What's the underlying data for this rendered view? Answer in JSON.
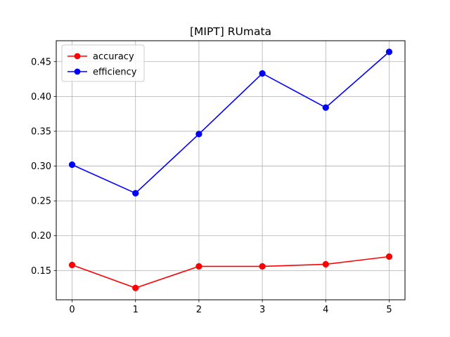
{
  "chart_data": {
    "type": "line",
    "title": "[MIPT] RUmata",
    "xlabel": "",
    "ylabel": "",
    "x": [
      0,
      1,
      2,
      3,
      4,
      5
    ],
    "xticks": [
      "0",
      "1",
      "2",
      "3",
      "4",
      "5"
    ],
    "yticks": [
      0.15,
      0.2,
      0.25,
      0.3,
      0.35,
      0.4,
      0.45
    ],
    "ytick_labels": [
      "0.15",
      "0.20",
      "0.25",
      "0.30",
      "0.35",
      "0.40",
      "0.45"
    ],
    "xlim": [
      -0.25,
      5.25
    ],
    "ylim": [
      0.108,
      0.48
    ],
    "grid": true,
    "legend_position": "top-left",
    "series": [
      {
        "name": "accuracy",
        "color": "#ff0000",
        "marker": "circle",
        "values": [
          0.158,
          0.125,
          0.156,
          0.156,
          0.159,
          0.17
        ]
      },
      {
        "name": "efficiency",
        "color": "#0000ff",
        "marker": "circle",
        "values": [
          0.302,
          0.261,
          0.346,
          0.433,
          0.384,
          0.464
        ]
      }
    ]
  }
}
